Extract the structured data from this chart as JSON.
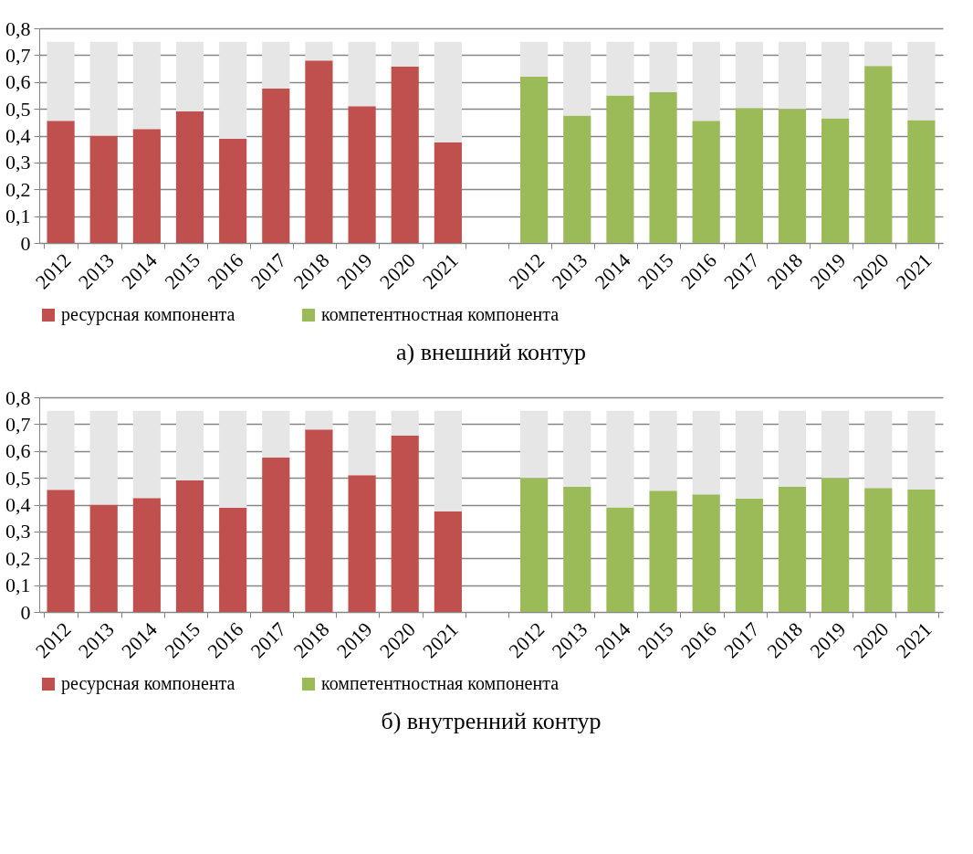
{
  "chart_data": [
    {
      "type": "bar",
      "title": "а) внешний контур",
      "stacked": true,
      "legend": "bottom",
      "grid": "y",
      "categories": [
        "2012",
        "2013",
        "2014",
        "2015",
        "2016",
        "2017",
        "2018",
        "2019",
        "2020",
        "2021",
        null,
        "2012",
        "2013",
        "2014",
        "2015",
        "2016",
        "2017",
        "2018",
        "2019",
        "2020",
        "2021"
      ],
      "ylim": [
        0,
        0.8
      ],
      "yticks": [
        0,
        {
          "value": 0.1,
          "label": "0,1"
        },
        {
          "value": 0.2,
          "label": "0,2"
        },
        {
          "value": 0.3,
          "label": "0,3"
        },
        {
          "value": 0.4,
          "label": "0,4"
        },
        {
          "value": 0.5,
          "label": "0,5"
        },
        {
          "value": 0.6,
          "label": "0,6"
        },
        {
          "value": 0.7,
          "label": "0,7"
        },
        {
          "value": 0.8,
          "label": "0,8"
        }
      ],
      "series": [
        {
          "name": "ресурсная компонента",
          "color": "#c0504d",
          "values": [
            0.455,
            0.4,
            0.425,
            0.49,
            0.388,
            0.575,
            0.68,
            0.51,
            0.658,
            0.375,
            null,
            null,
            null,
            null,
            null,
            null,
            null,
            null,
            null,
            null,
            null
          ]
        },
        {
          "name": "компетентностная компонента",
          "color": "#9bbb59",
          "values": [
            null,
            null,
            null,
            null,
            null,
            null,
            null,
            null,
            null,
            null,
            null,
            0.62,
            0.475,
            0.55,
            0.562,
            0.455,
            0.503,
            0.5,
            0.465,
            0.66,
            0.458
          ]
        },
        {
          "color": "#e6e6e6",
          "values": [
            0.295,
            0.35,
            0.325,
            0.26,
            0.362,
            0.175,
            0.07,
            0.24,
            0.092,
            0.375,
            null,
            0.13,
            0.275,
            0.2,
            0.188,
            0.295,
            0.247,
            0.25,
            0.285,
            0.09,
            0.292
          ]
        }
      ]
    },
    {
      "type": "bar",
      "title": "б) внутренний контур",
      "stacked": true,
      "legend": "bottom",
      "grid": "y",
      "categories": [
        "2012",
        "2013",
        "2014",
        "2015",
        "2016",
        "2017",
        "2018",
        "2019",
        "2020",
        "2021",
        null,
        "2012",
        "2013",
        "2014",
        "2015",
        "2016",
        "2017",
        "2018",
        "2019",
        "2020",
        "2021"
      ],
      "ylim": [
        0,
        0.8
      ],
      "yticks": [
        0,
        {
          "value": 0.1,
          "label": "0,1"
        },
        {
          "value": 0.2,
          "label": "0,2"
        },
        {
          "value": 0.3,
          "label": "0,3"
        },
        {
          "value": 0.4,
          "label": "0,4"
        },
        {
          "value": 0.5,
          "label": "0,5"
        },
        {
          "value": 0.6,
          "label": "0,6"
        },
        {
          "value": 0.7,
          "label": "0,7"
        },
        {
          "value": 0.8,
          "label": "0,8"
        }
      ],
      "series": [
        {
          "name": "ресурсная компонента",
          "color": "#c0504d",
          "values": [
            0.455,
            0.4,
            0.425,
            0.49,
            0.388,
            0.575,
            0.68,
            0.51,
            0.658,
            0.375,
            null,
            null,
            null,
            null,
            null,
            null,
            null,
            null,
            null,
            null,
            null
          ]
        },
        {
          "name": "компетентностная компонента",
          "color": "#9bbb59",
          "values": [
            null,
            null,
            null,
            null,
            null,
            null,
            null,
            null,
            null,
            null,
            null,
            0.5,
            0.467,
            0.39,
            0.452,
            0.438,
            0.423,
            0.466,
            0.5,
            0.462,
            0.457
          ]
        },
        {
          "color": "#e6e6e6",
          "values": [
            0.295,
            0.35,
            0.325,
            0.26,
            0.362,
            0.175,
            0.07,
            0.24,
            0.092,
            0.375,
            null,
            0.25,
            0.283,
            0.36,
            0.298,
            0.312,
            0.327,
            0.284,
            0.25,
            0.288,
            0.293
          ]
        }
      ]
    }
  ]
}
